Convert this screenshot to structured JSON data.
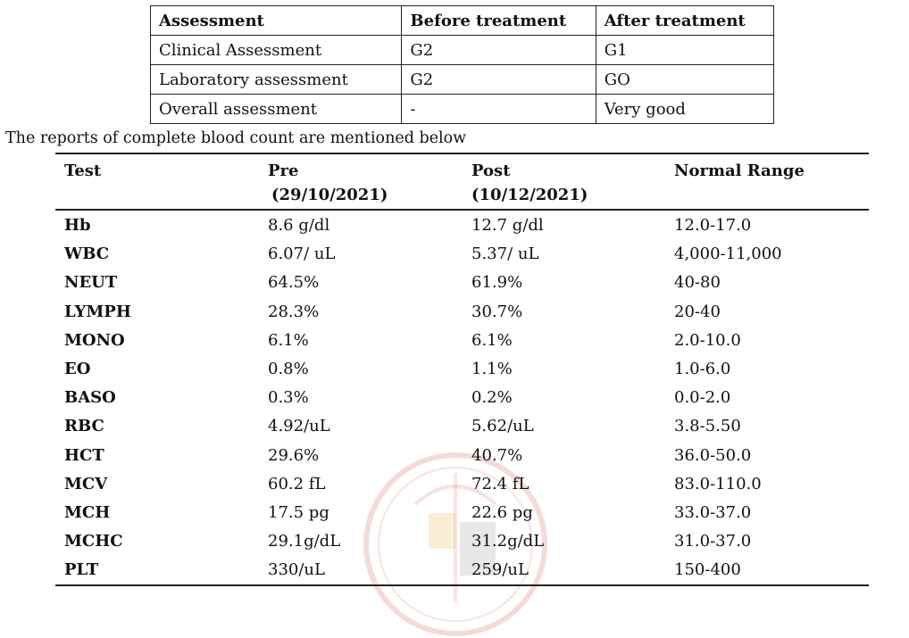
{
  "assessment_table": {
    "headers": [
      "Assessment",
      "Before treatment",
      "After treatment"
    ],
    "rows": [
      [
        "Clinical Assessment",
        "G2",
        "G1"
      ],
      [
        "Laboratory assessment",
        "G2",
        "GO"
      ],
      [
        "Overall assessment",
        "-",
        "Very good"
      ]
    ]
  },
  "intro_text": "The reports of complete blood count are mentioned below",
  "cbc_table": {
    "headers": {
      "test": "Test",
      "pre": "Pre",
      "pre_date": "(29/10/2021)",
      "post": "Post",
      "post_date": "(10/12/2021)",
      "normal": "Normal Range"
    },
    "rows": [
      [
        "Hb",
        "8.6 g/dl",
        "12.7 g/dl",
        "12.0-17.0"
      ],
      [
        "WBC",
        "6.07/ uL",
        "5.37/ uL",
        "4,000-11,000"
      ],
      [
        "NEUT",
        "64.5%",
        "61.9%",
        "40-80"
      ],
      [
        "LYMPH",
        "28.3%",
        "30.7%",
        "20-40"
      ],
      [
        "MONO",
        "6.1%",
        "6.1%",
        "2.0-10.0"
      ],
      [
        "EO",
        "0.8%",
        "1.1%",
        "1.0-6.0"
      ],
      [
        "BASO",
        "0.3%",
        "0.2%",
        "0.0-2.0"
      ],
      [
        "RBC",
        "4.92/uL",
        "5.62/uL",
        "3.8-5.50"
      ],
      [
        "HCT",
        "29.6%",
        "40.7%",
        "36.0-50.0"
      ],
      [
        "MCV",
        "60.2 fL",
        "72.4 fL",
        "83.0-110.0"
      ],
      [
        "MCH",
        "17.5 pg",
        "22.6 pg",
        "33.0-37.0"
      ],
      [
        "MCHC",
        "29.1g/dL",
        "31.2g/dL",
        "31.0-37.0"
      ],
      [
        "PLT",
        "330/uL",
        "259/uL",
        "150-400"
      ]
    ]
  },
  "colors": {
    "text": "#111111",
    "watermark": "#c0392b"
  }
}
